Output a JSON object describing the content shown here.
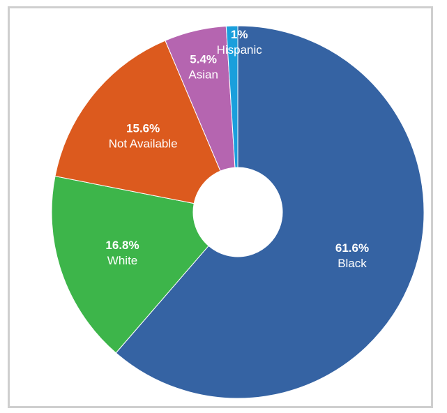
{
  "chart_data": {
    "type": "pie",
    "donut": true,
    "title": "",
    "slices": [
      {
        "label": "Black",
        "value": 61.6,
        "value_label": "61.6%",
        "color": "#3563a3"
      },
      {
        "label": "White",
        "value": 16.8,
        "value_label": "16.8%",
        "color": "#3db54a"
      },
      {
        "label": "Not Available",
        "value": 15.6,
        "value_label": "15.6%",
        "color": "#dc5a1e"
      },
      {
        "label": "Asian",
        "value": 5.4,
        "value_label": "5.4%",
        "color": "#b565b0"
      },
      {
        "label": "Hispanic",
        "value": 1,
        "value_label": "1%",
        "color": "#1a9fdc"
      }
    ],
    "start": "top",
    "direction": "clockwise",
    "legend": "none"
  }
}
